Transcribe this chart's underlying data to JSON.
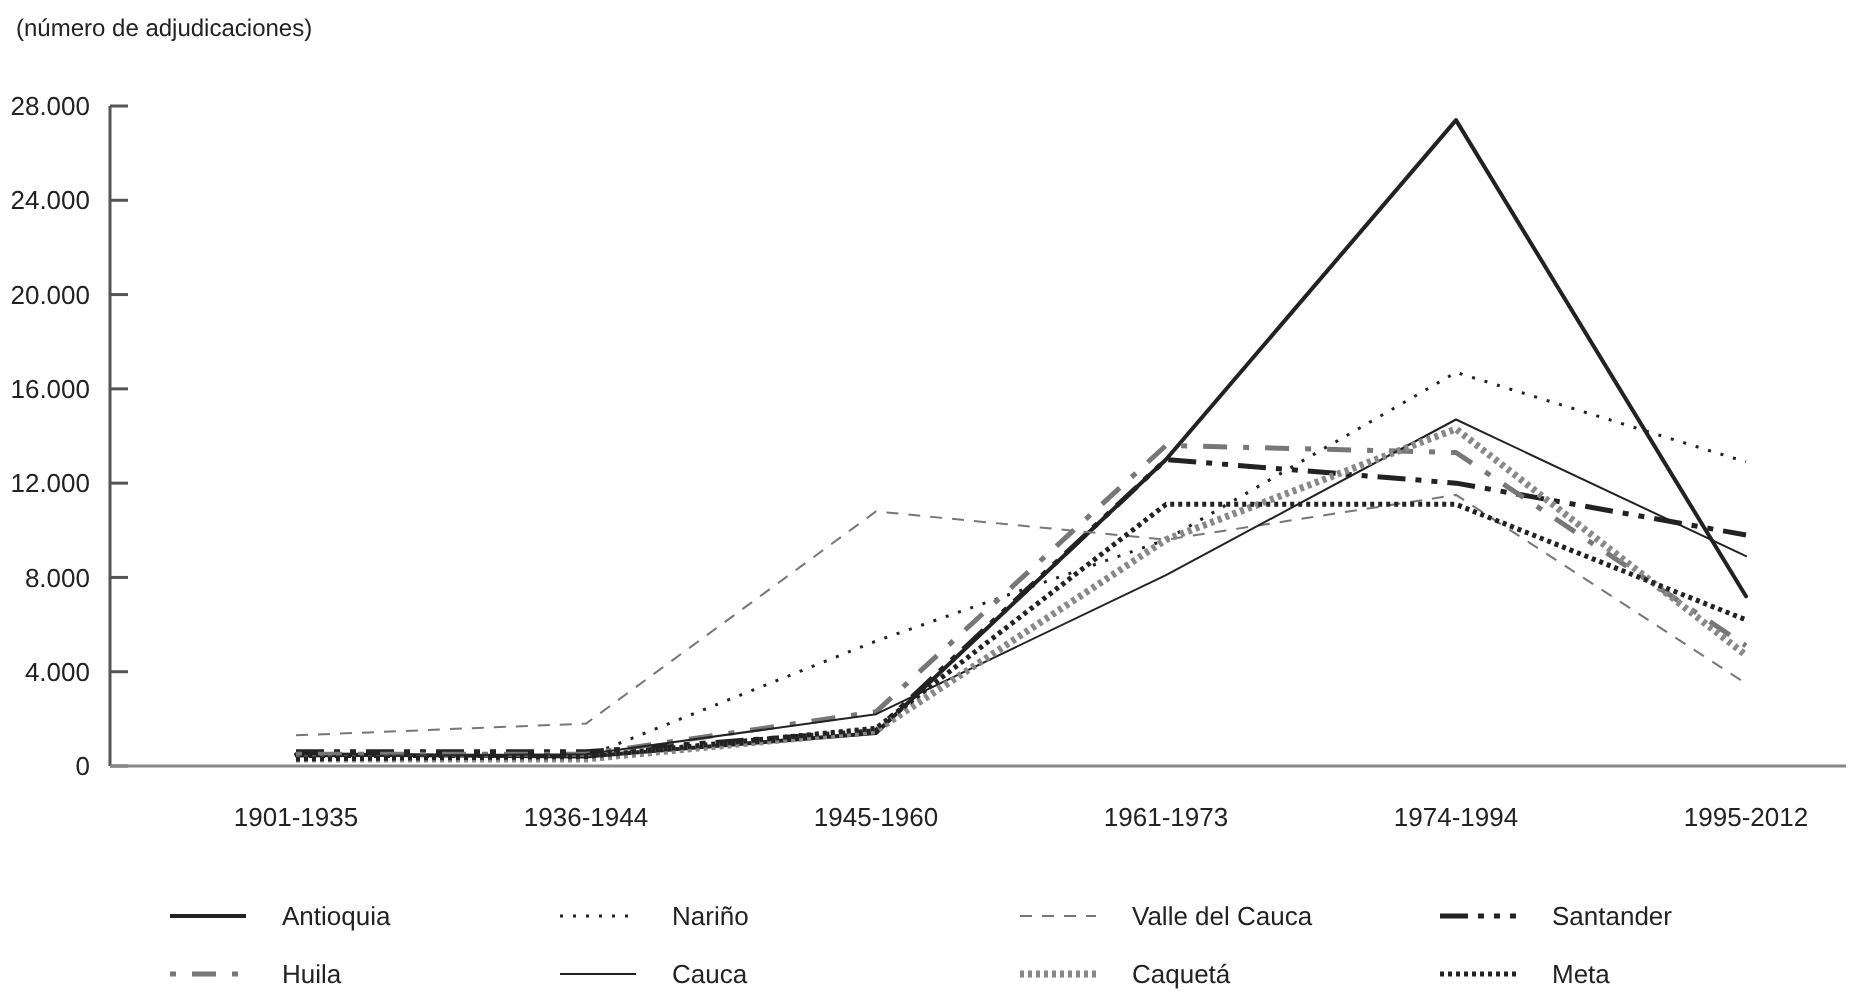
{
  "chart_data": {
    "type": "line",
    "ylabel": "(número de adjudicaciones)",
    "categories": [
      "1901-1935",
      "1936-1944",
      "1945-1960",
      "1961-1973",
      "1974-1994",
      "1995-2012"
    ],
    "ylim": [
      0,
      28000
    ],
    "yticks": [
      {
        "value": 0,
        "label": "0"
      },
      {
        "value": 4000,
        "label": "4.000"
      },
      {
        "value": 8000,
        "label": "8.000"
      },
      {
        "value": 12000,
        "label": "12.000"
      },
      {
        "value": 16000,
        "label": "16.000"
      },
      {
        "value": 20000,
        "label": "20.000"
      },
      {
        "value": 24000,
        "label": "24.000"
      },
      {
        "value": 28000,
        "label": "28.000"
      }
    ],
    "grid": false,
    "legend": "bottom",
    "series": [
      {
        "name": "Antioquia",
        "color": "#222222",
        "line_style": "solid",
        "values": [
          500,
          400,
          1400,
          13000,
          27400,
          7200
        ]
      },
      {
        "name": "Nariño",
        "color": "#222222",
        "line_style": "dotted",
        "values": [
          400,
          400,
          5300,
          9600,
          16700,
          12900
        ]
      },
      {
        "name": "Valle del Cauca",
        "color": "#777777",
        "line_style": "dashed",
        "values": [
          1300,
          1800,
          10800,
          9600,
          11500,
          3500
        ]
      },
      {
        "name": "Santander",
        "color": "#222222",
        "line_style": "dashdot",
        "values": [
          600,
          600,
          1500,
          13000,
          12000,
          9800
        ]
      },
      {
        "name": "Huila",
        "color": "#777777",
        "line_style": "dashdot",
        "values": [
          500,
          500,
          2300,
          13600,
          13300,
          5100
        ]
      },
      {
        "name": "Cauca",
        "color": "#222222",
        "line_style": "solid",
        "values": [
          400,
          500,
          2200,
          8100,
          14700,
          8900
        ]
      },
      {
        "name": "Caquetá",
        "color": "#888888",
        "line_style": "dotted",
        "values": [
          300,
          300,
          1500,
          9600,
          14300,
          4700
        ]
      },
      {
        "name": "Meta",
        "color": "#222222",
        "line_style": "dotted",
        "values": [
          300,
          400,
          1600,
          11100,
          11100,
          6200
        ]
      }
    ]
  }
}
